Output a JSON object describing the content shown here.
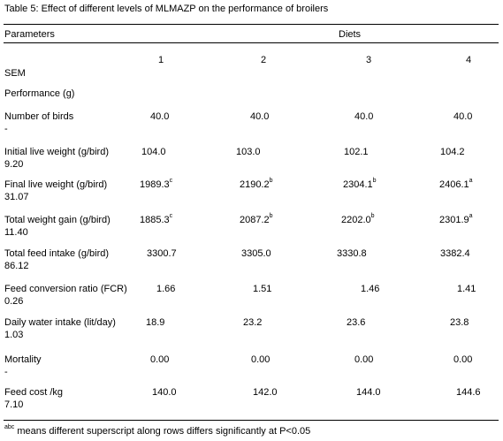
{
  "table": {
    "caption": "Table 5: Effect of different levels of MLMAZP on the performance of broilers",
    "header": {
      "parameters": "Parameters",
      "diets": "Diets",
      "diet_numbers": [
        "1",
        "2",
        "3",
        "4"
      ],
      "sem": "SEM"
    },
    "section_title": "Performance (g)",
    "rows": [
      {
        "label": "Number of birds",
        "values": [
          "40.0",
          "40.0",
          "40.0",
          "40.0"
        ],
        "sups": [
          "",
          "",
          "",
          ""
        ],
        "sem": "-"
      },
      {
        "label": "Initial live weight (g/bird)",
        "values": [
          "104.0",
          "103.0",
          "102.1",
          "104.2"
        ],
        "sups": [
          "",
          "",
          "",
          ""
        ],
        "sem": "9.20"
      },
      {
        "label": "Final live weight (g/bird)",
        "values": [
          "1989.3",
          "2190.2",
          "2304.1",
          "2406.1"
        ],
        "sups": [
          "c",
          "b",
          "b",
          "a"
        ],
        "sem": "31.07"
      },
      {
        "label": "Total weight gain (g/bird)",
        "values": [
          "1885.3",
          "2087.2",
          "2202.0",
          "2301.9"
        ],
        "sups": [
          "c",
          "b",
          "b",
          "a"
        ],
        "sem": "11.40"
      },
      {
        "label": "Total feed intake (g/bird)",
        "values": [
          "3300.7",
          "3305.0",
          "3330.8",
          "3382.4"
        ],
        "sups": [
          "",
          "",
          "",
          ""
        ],
        "sem": "86.12"
      },
      {
        "label": "Feed conversion ratio (FCR)",
        "values": [
          "1.66",
          "1.51",
          "1.46",
          "1.41"
        ],
        "sups": [
          "",
          "",
          "",
          ""
        ],
        "sem": "0.26"
      },
      {
        "label": "Daily water intake (lit/day)",
        "values": [
          "18.9",
          "23.2",
          "23.6",
          "23.8"
        ],
        "sups": [
          "",
          "",
          "",
          ""
        ],
        "sem": "1.03"
      },
      {
        "label": "Mortality",
        "values": [
          "0.00",
          "0.00",
          "0.00",
          "0.00"
        ],
        "sups": [
          "",
          "",
          "",
          ""
        ],
        "sem": "-"
      },
      {
        "label": "Feed cost /kg",
        "values": [
          "140.0",
          "142.0",
          "144.0",
          "144.6"
        ],
        "sups": [
          "",
          "",
          "",
          ""
        ],
        "sem": "7.10"
      }
    ],
    "footnote": {
      "marker": "abc",
      "text": " means different superscript along rows differs significantly at P<0.05"
    }
  }
}
